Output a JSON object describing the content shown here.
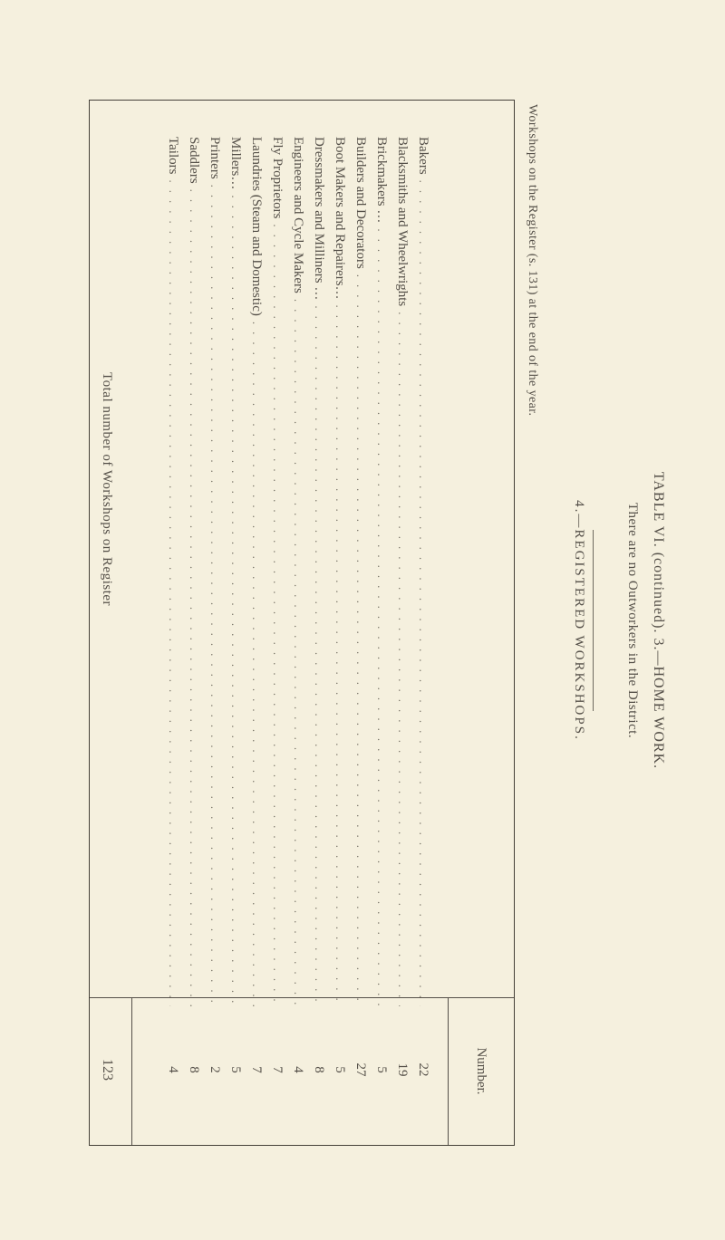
{
  "title": {
    "line1": "TABLE VI. (continued).   3.—HOME WORK.",
    "line2": "There are no Outworkers in the District."
  },
  "section_label": "4.—REGISTERED WORKSHOPS.",
  "workshops_header": "Workshops on the Register (s. 131) at the end of the year.",
  "column_header": "Number.",
  "rows": [
    {
      "label": "Bakers",
      "value": "22"
    },
    {
      "label": "Blacksmiths and Wheelwrights",
      "value": "19"
    },
    {
      "label": "Brickmakers …",
      "value": "5"
    },
    {
      "label": "Builders and Decorators",
      "value": "27"
    },
    {
      "label": "Boot Makers and Repairers…",
      "value": "5"
    },
    {
      "label": "Dressmakers and Milliners …",
      "value": "8"
    },
    {
      "label": "Engineers and Cycle Makers",
      "value": "4"
    },
    {
      "label": "Fly Proprietors",
      "value": "7"
    },
    {
      "label": "Laundries (Steam and Domestic)",
      "value": "7"
    },
    {
      "label": "Millers…",
      "value": "5"
    },
    {
      "label": "Printers",
      "value": "2"
    },
    {
      "label": "Saddlers",
      "value": "8"
    },
    {
      "label": "Tailors",
      "value": "4"
    }
  ],
  "total": {
    "label": "Total number of Workshops on Register",
    "value": "123"
  },
  "leaders": ".................................................................................................",
  "colors": {
    "page_bg": "#f5f0de",
    "text": "#555049",
    "rule": "#444038"
  }
}
